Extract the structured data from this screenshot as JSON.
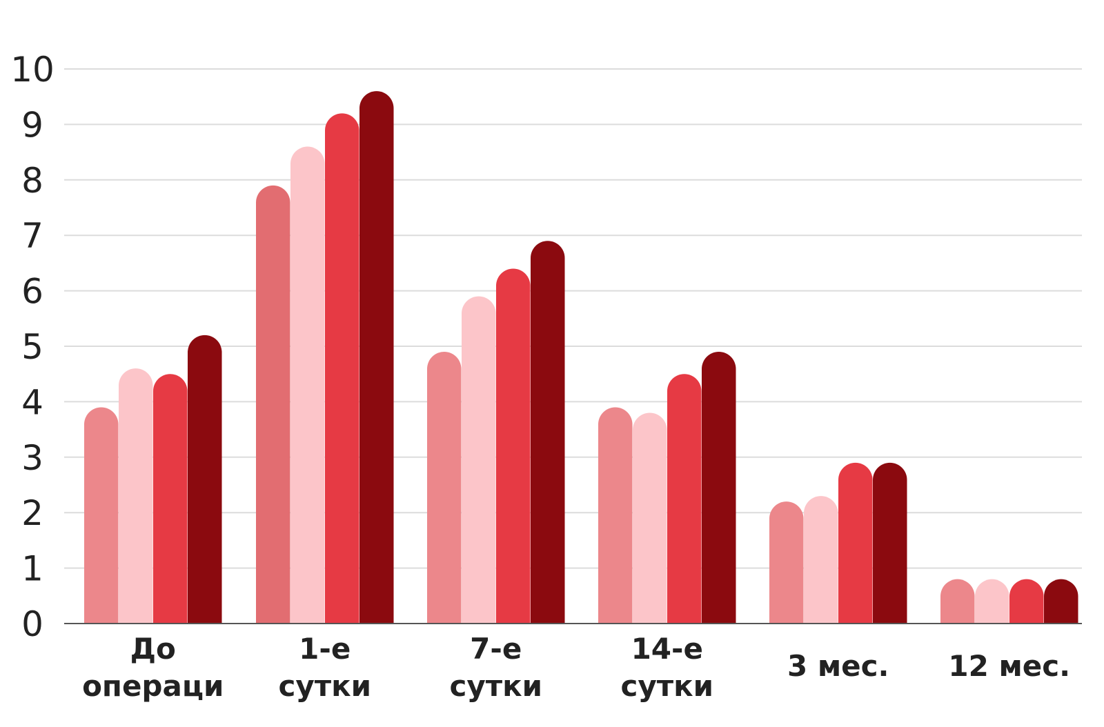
{
  "chart_data": {
    "type": "bar",
    "categories": [
      [
        "До",
        "операци"
      ],
      [
        "1-е",
        "сутки"
      ],
      [
        "7-е",
        "сутки"
      ],
      [
        "14-е",
        "сутки"
      ],
      [
        "3 мес."
      ],
      [
        "12 мес."
      ]
    ],
    "series": [
      {
        "color": "#ec878b",
        "values": [
          3.9,
          7.9,
          4.9,
          3.9,
          2.2,
          0.8
        ]
      },
      {
        "color": "#fcc5c9",
        "values": [
          4.6,
          8.6,
          5.9,
          3.8,
          2.3,
          0.8
        ]
      },
      {
        "color": "#e63a44",
        "values": [
          4.5,
          9.2,
          6.4,
          4.5,
          2.9,
          0.8
        ]
      },
      {
        "color": "#8b0a0f",
        "values": [
          5.2,
          9.6,
          6.9,
          4.9,
          2.9,
          0.8
        ]
      }
    ],
    "first_group_first_series_color": "#e26d71",
    "title": "",
    "xlabel": "",
    "ylabel": "",
    "ylim": [
      0,
      10
    ],
    "yticks": [
      "0",
      "1",
      "2",
      "3",
      "4",
      "5",
      "6",
      "7",
      "8",
      "9",
      "10"
    ],
    "grid": true,
    "legend": "none"
  }
}
